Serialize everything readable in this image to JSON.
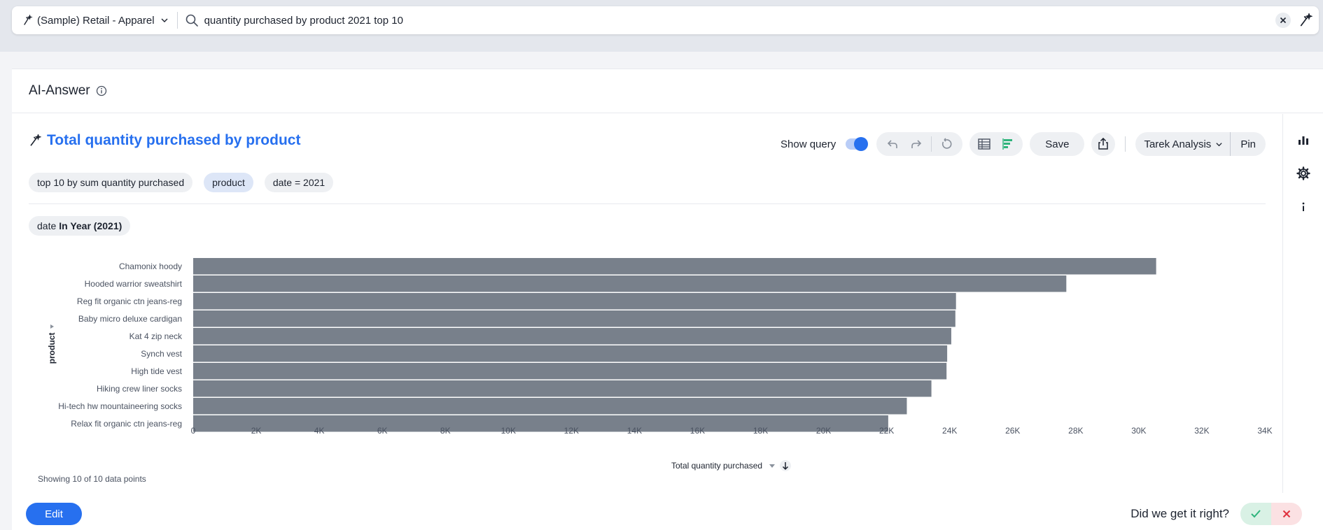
{
  "search": {
    "datasource": "(Sample) Retail - Apparel",
    "query": "quantity purchased by product 2021 top 10"
  },
  "card": {
    "title": "AI-Answer"
  },
  "viz": {
    "title": "Total quantity purchased by product",
    "show_query_label": "Show query",
    "save_label": "Save",
    "liveboard_label": "Tarek Analysis",
    "pin_label": "Pin",
    "tokens": [
      "top 10 by sum quantity purchased",
      "product",
      "date = 2021"
    ],
    "filter": {
      "prefix": "date",
      "value": "In Year (2021)"
    },
    "count_note": "Showing 10 of 10 data points"
  },
  "footer": {
    "edit_label": "Edit",
    "feedback_question": "Did we get it right?"
  },
  "colors": {
    "accent": "#2770ef",
    "bar": "#78808b",
    "yes": "#2fb47c",
    "no": "#e0303d"
  },
  "chart_data": {
    "type": "bar",
    "orientation": "horizontal",
    "categories": [
      "Chamonix hoody",
      "Hooded warrior sweatshirt",
      "Reg fit organic ctn jeans-reg",
      "Baby micro deluxe cardigan",
      "Kat 4 zip neck",
      "Synch vest",
      "High tide vest",
      "Hiking crew liner socks",
      "Hi-tech hw mountaineering socks",
      "Relax fit organic ctn jeans-reg"
    ],
    "values": [
      30550,
      27700,
      24200,
      24180,
      24050,
      23920,
      23900,
      23420,
      22640,
      22050
    ],
    "xlabel": "Total quantity purchased",
    "ylabel": "product",
    "xlim": [
      0,
      34000
    ],
    "xticks": [
      0,
      2000,
      4000,
      6000,
      8000,
      10000,
      12000,
      14000,
      16000,
      18000,
      20000,
      22000,
      24000,
      26000,
      28000,
      30000,
      32000,
      34000
    ],
    "xtick_labels": [
      "0",
      "2K",
      "4K",
      "6K",
      "8K",
      "10K",
      "12K",
      "14K",
      "16K",
      "18K",
      "20K",
      "22K",
      "24K",
      "26K",
      "28K",
      "30K",
      "32K",
      "34K"
    ],
    "grid": false
  }
}
